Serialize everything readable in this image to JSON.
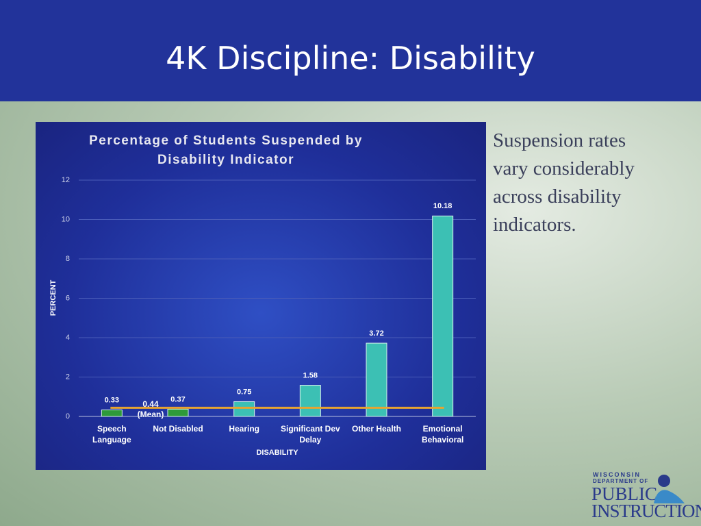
{
  "slide_title": "4K Discipline: Disability",
  "side_text": "Suspension rates vary considerably across disability indicators.",
  "logo": {
    "line1": "WISCONSIN",
    "line2": "DEPARTMENT OF",
    "line3": "PUBLIC",
    "line4": "INSTRUCTION"
  },
  "chart_data": {
    "type": "bar",
    "title": "Percentage of Students Suspended by Disability Indicator",
    "x_label": "DISABILITY",
    "y_label": "PERCENT",
    "categories": [
      "Speech Language",
      "Not Disabled",
      "Hearing",
      "Significant Dev Delay",
      "Other Health",
      "Emotional Behavioral"
    ],
    "values": [
      0.33,
      0.37,
      0.75,
      1.58,
      3.72,
      10.18
    ],
    "colors": [
      "#2e9a3a",
      "#2e9a3a",
      "#3cc0b4",
      "#3cc0b4",
      "#3cc0b4",
      "#3cc0b4"
    ],
    "mean": {
      "value": 0.44,
      "label": "0.44 (Mean)",
      "color": "#e8a430"
    },
    "ylim": [
      0,
      12
    ],
    "yticks": [
      0,
      2,
      4,
      6,
      8,
      10,
      12
    ],
    "grid": true
  }
}
